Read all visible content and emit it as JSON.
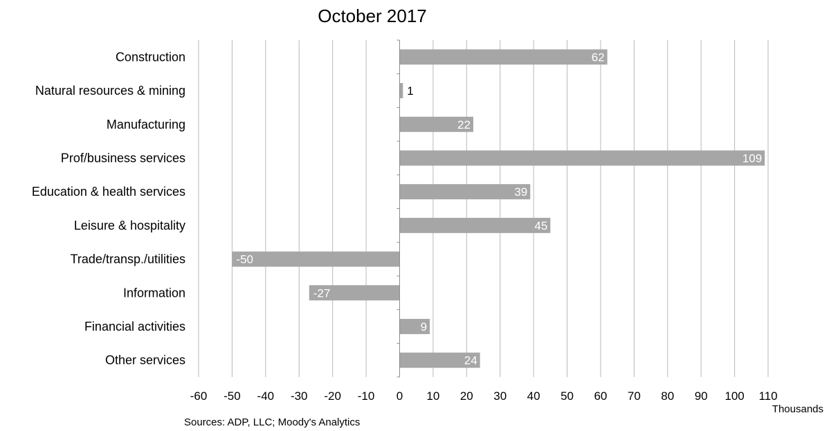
{
  "chart_data": {
    "type": "bar",
    "orientation": "horizontal",
    "title": "October 2017",
    "categories": [
      "Construction",
      "Natural resources & mining",
      "Manufacturing",
      "Prof/business services",
      "Education & health services",
      "Leisure & hospitality",
      "Trade/transp./utilities",
      "Information",
      "Financial activities",
      "Other services"
    ],
    "values": [
      62,
      1,
      22,
      109,
      39,
      45,
      -50,
      -27,
      9,
      24
    ],
    "value_labels": [
      "62",
      "1",
      "22",
      "109",
      "39",
      "45",
      "-50",
      "-27",
      "9",
      "24"
    ],
    "xlim": [
      -60,
      110
    ],
    "x_ticks": [
      "-60",
      "-50",
      "-40",
      "-30",
      "-20",
      "-10",
      "0",
      "10",
      "20",
      "30",
      "40",
      "50",
      "60",
      "70",
      "80",
      "90",
      "100",
      "110"
    ],
    "x_unit_label": "Thousands",
    "grid": "vertical",
    "source": "Sources: ADP, LLC; Moody's Analytics",
    "colors": {
      "bar": "#a6a6a6",
      "grid": "#b8b8b8",
      "label_inside": "#ffffff",
      "label_outside": "#000000"
    }
  }
}
